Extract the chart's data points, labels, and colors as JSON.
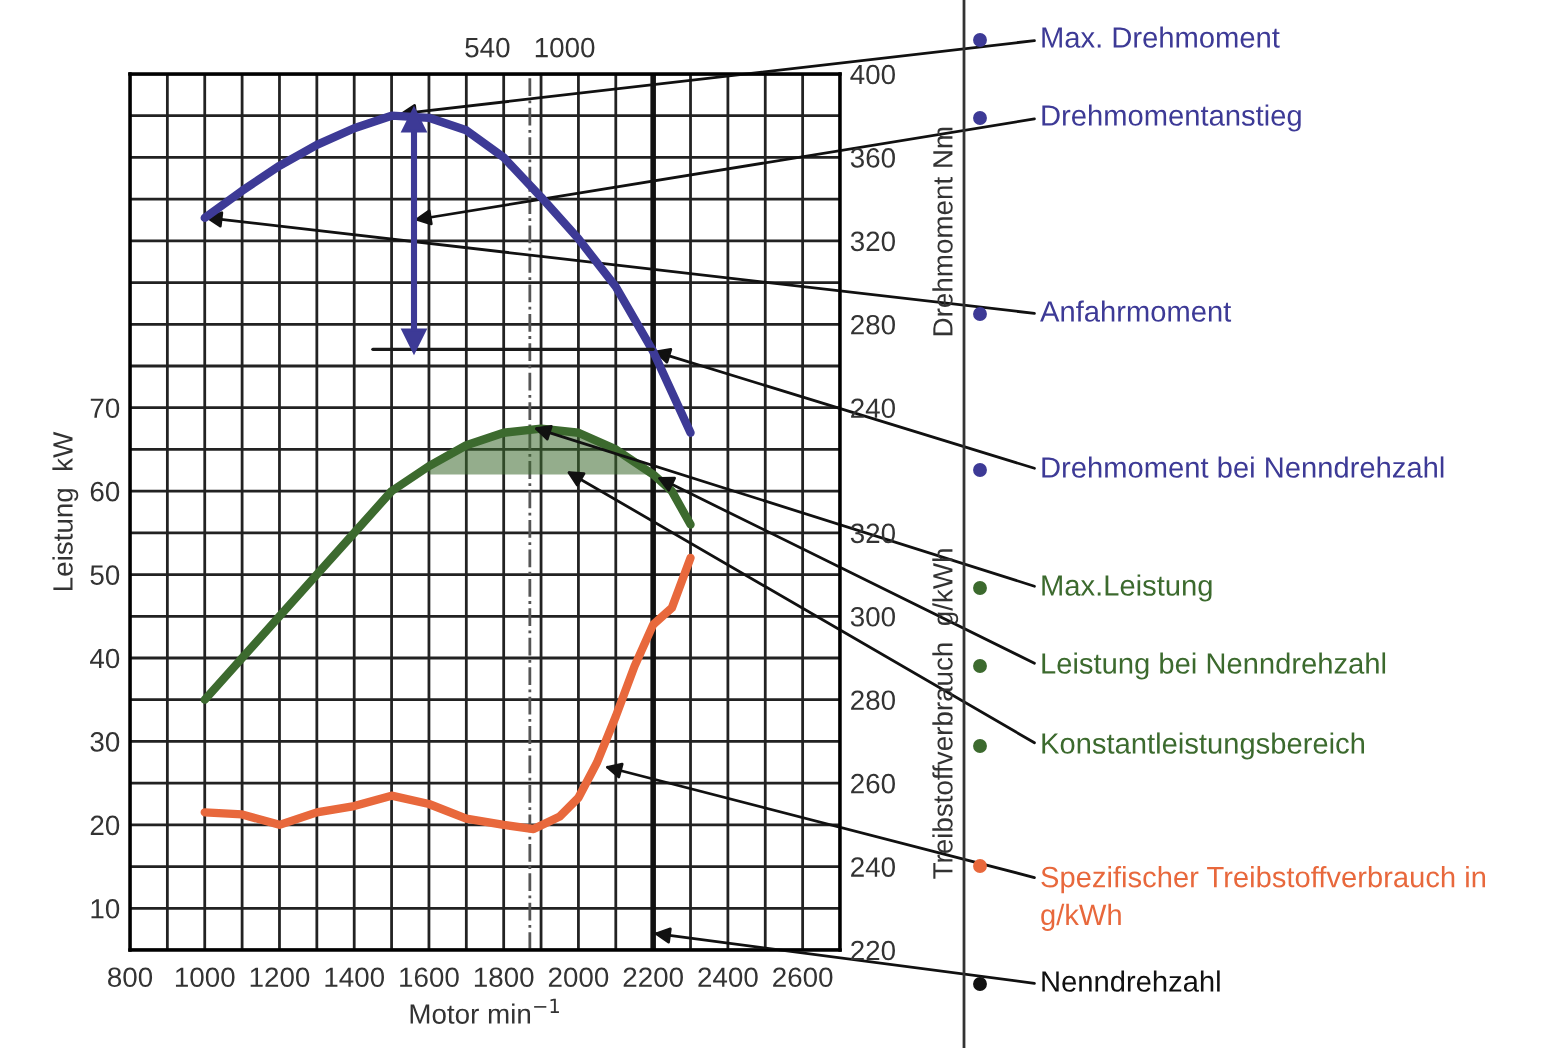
{
  "chart_data": {
    "type": "line",
    "xlabel": "Motor min$^{−1}$",
    "ylabel": "Leistung  kW",
    "y2label": "Drehmoment Nm",
    "y3label": "Treibstoffverbrauch  g/kWh",
    "xlim": [
      800,
      2700
    ],
    "xticks": [
      800,
      {
        "value": 900,
        "label": null
      },
      1000,
      {
        "value": 1100,
        "label": null
      },
      1200,
      {
        "value": 1300,
        "label": null
      },
      1400,
      {
        "value": 1500,
        "label": null
      },
      1600,
      {
        "value": 1700,
        "label": null
      },
      1800,
      {
        "value": 1900,
        "label": null
      },
      2000,
      {
        "value": 2100,
        "label": null
      },
      2200,
      {
        "value": 2300,
        "label": null
      },
      2400,
      {
        "value": 2500,
        "label": null
      },
      2600,
      {
        "value": 2700,
        "label": null
      }
    ],
    "ylim": [
      5,
      110
    ],
    "yticks": [
      {
        "value": 5,
        "label": null
      },
      10,
      {
        "value": 15,
        "label": null
      },
      20,
      {
        "value": 25,
        "label": null
      },
      30,
      {
        "value": 35,
        "label": null
      },
      40,
      {
        "value": 45,
        "label": null
      },
      50,
      {
        "value": 55,
        "label": null
      },
      60,
      {
        "value": 65,
        "label": null
      },
      70,
      {
        "value": 75,
        "label": null
      },
      {
        "value": 80,
        "label": null
      },
      {
        "value": 85,
        "label": null
      },
      {
        "value": 90,
        "label": null
      },
      {
        "value": 95,
        "label": null
      },
      {
        "value": 100,
        "label": null
      },
      {
        "value": 105,
        "label": null
      },
      {
        "value": 110,
        "label": null
      }
    ],
    "y2lim": [
      -20,
      400
    ],
    "y2ticks": [
      240,
      280,
      320,
      360,
      400
    ],
    "y3lim": [
      220,
      430
    ],
    "y3ticks": [
      220,
      240,
      260,
      280,
      300,
      320
    ],
    "grid": true,
    "legend": false,
    "marker": "none",
    "line_style": "solid",
    "series": [
      {
        "color": "#3c6a2e",
        "x": [
          1000,
          1100,
          1200,
          1300,
          1400,
          1500,
          1600,
          1700,
          1800,
          1900,
          2000,
          2100,
          2200,
          2250,
          2300
        ],
        "values": [
          35,
          40,
          45,
          50,
          55,
          60,
          63,
          65.5,
          67,
          67.5,
          67,
          65,
          62,
          60,
          56
        ],
        "lower": [
          null,
          null,
          null,
          null,
          null,
          null,
          62,
          62,
          62,
          62,
          62,
          62,
          62,
          null,
          null
        ],
        "upper": [
          null,
          null,
          null,
          null,
          null,
          null,
          63,
          65.5,
          67,
          67.5,
          67,
          65,
          62,
          null,
          null
        ]
      },
      {
        "axis": "y2",
        "color": "#3d3a96",
        "x": [
          1000,
          1100,
          1200,
          1300,
          1400,
          1500,
          1600,
          1700,
          1800,
          1900,
          2000,
          2100,
          2200,
          2300
        ],
        "values": [
          331,
          344,
          356,
          366,
          374,
          380,
          379,
          373,
          360,
          341,
          321,
          298,
          267,
          228
        ]
      },
      {
        "axis": "y2",
        "color": "#1a1a1a",
        "x": [
          1450,
          2200
        ],
        "values": [
          268,
          268
        ]
      },
      {
        "axis": "y2",
        "color": "#3d3a96",
        "marker": "triangle",
        "x": [
          1560,
          1560
        ],
        "values": [
          378,
          272
        ]
      },
      {
        "axis": "y3",
        "color": "#e8683c",
        "x": [
          1000,
          1100,
          1200,
          1300,
          1400,
          1500,
          1600,
          1700,
          1800,
          1880,
          1950,
          2000,
          2050,
          2100,
          2150,
          2200,
          2250,
          2300
        ],
        "values": [
          253,
          252.5,
          250,
          253,
          254.5,
          257,
          255,
          251.5,
          250,
          249,
          252,
          256.5,
          265,
          276,
          288,
          298,
          302,
          314
        ]
      }
    ],
    "ref_lines": [
      {
        "axis": "x",
        "value": 1870,
        "line_style": "dashdot",
        "color": "#555555"
      },
      {
        "axis": "x",
        "value": 2200,
        "line_style": "solid",
        "color": "#111111"
      }
    ],
    "annotations": [
      {
        "text": "Max. Drehmoment",
        "x": 1520,
        "y": 105.2
      },
      {
        "text": "Drehmomentanstieg",
        "x": 1560,
        "y": 92.5
      },
      {
        "text": "Anfahrmoment",
        "x": 1000,
        "y": 92.8
      },
      {
        "text": "Drehmoment bei Nenndrehzahl",
        "x": 2200,
        "y": 76.8
      },
      {
        "text": "Max.Leistung",
        "x": 1880,
        "y": 67.6
      },
      {
        "text": "Leistung bei Nenndrehzahl",
        "x": 2210,
        "y": 61.7
      },
      {
        "text": "Konstantleistungsbereich",
        "x": 1968,
        "y": 62.4
      },
      {
        "text": "Spezifischer Treibstoffverbrauch in\ng/kWh",
        "x": 2070,
        "y": 27
      },
      {
        "text": "Nenndrehzahl",
        "x": 2200,
        "y": 7
      },
      {
        "text": "540   1000",
        "x": 1870,
        "y": 110
      }
    ]
  }
}
